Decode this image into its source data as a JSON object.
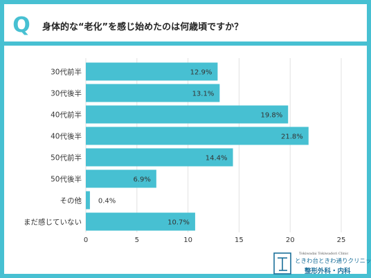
{
  "header": {
    "badge": "Q",
    "question": "身体的な“老化”を感じ始めたのは何歳頃ですか？"
  },
  "colors": {
    "accent": "#47c0d2",
    "bar": "#47c0d2",
    "text": "#333333",
    "logo": "#1a6f9a"
  },
  "chart_data": {
    "type": "bar",
    "orientation": "horizontal",
    "categories": [
      "30代前半",
      "30代後半",
      "40代前半",
      "40代後半",
      "50代前半",
      "50代後半",
      "その他",
      "まだ感じていない"
    ],
    "values": [
      12.9,
      13.1,
      19.8,
      21.8,
      14.4,
      6.9,
      0.4,
      10.7
    ],
    "value_labels": [
      "12.9%",
      "13.1%",
      "19.8%",
      "21.8%",
      "14.4%",
      "6.9%",
      "0.4%",
      "10.7%"
    ],
    "title": "",
    "xlabel": "",
    "ylabel": "",
    "xlim": [
      0,
      25
    ],
    "xticks": [
      0,
      5,
      10,
      15,
      20,
      25
    ],
    "xtick_labels": [
      "0",
      "5",
      "10",
      "15",
      "20",
      "25"
    ],
    "grid": true
  },
  "logo": {
    "icon": "clinic-logo-icon",
    "english_name": "Tokiwadai Tokiwadori Clinic",
    "name": "ときわ台ときわ通りクリニック",
    "departments": "整形外科・内科"
  }
}
